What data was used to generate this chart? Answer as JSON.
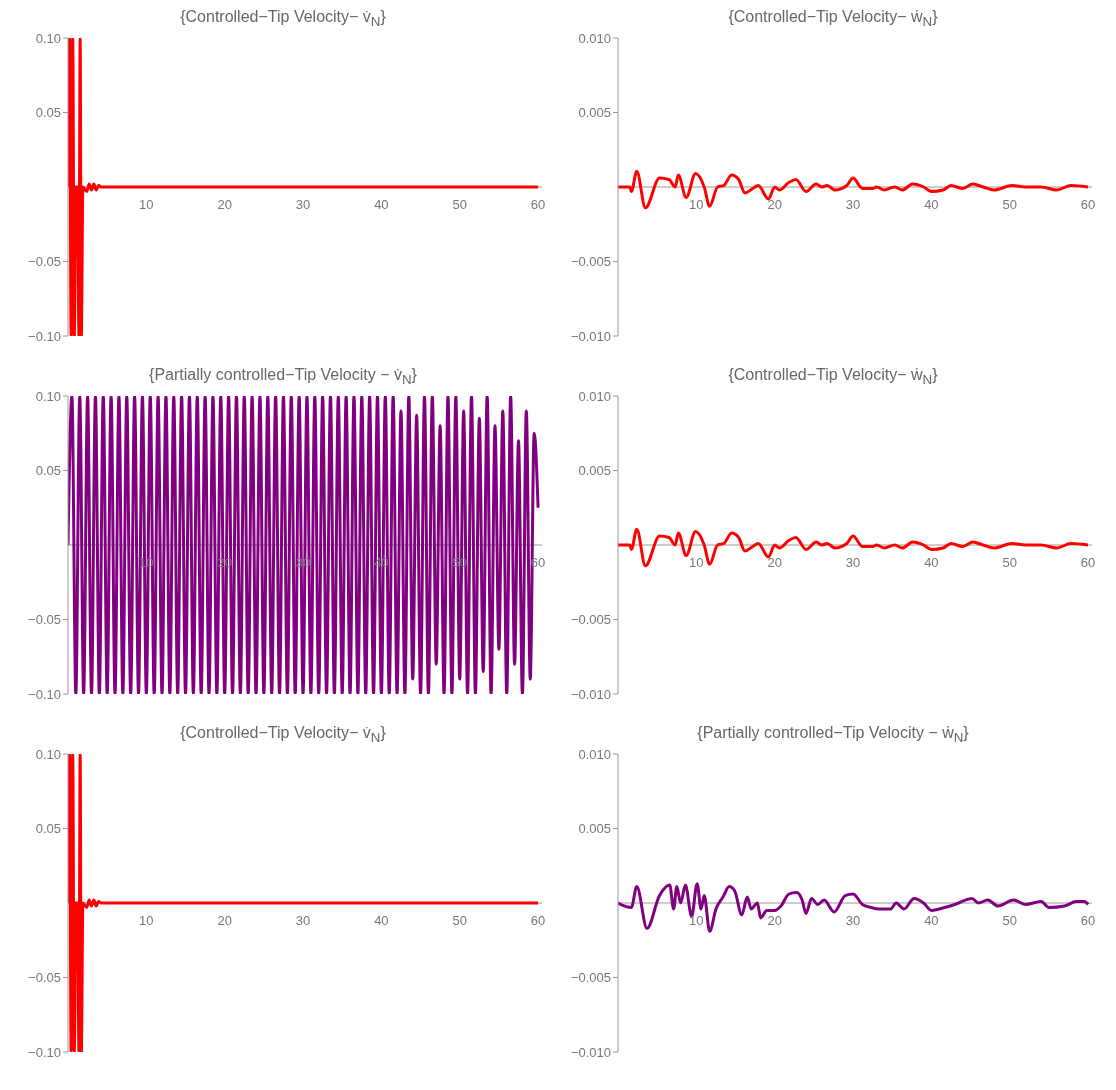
{
  "chart_data": [
    {
      "type": "line",
      "title": "{Controlled−Tip Velocity− v̇$_{N}$}",
      "xlim": [
        0,
        60.5
      ],
      "xticks": [
        10,
        20,
        30,
        40,
        50,
        60
      ],
      "ylim": [
        -0.1,
        0.1
      ],
      "yticks": [
        {
          "value": -0.1,
          "label": "−0.10"
        },
        {
          "value": -0.05,
          "label": "−0.05"
        },
        {
          "value": 0.05,
          "label": "0.05"
        },
        {
          "value": 0.1,
          "label": "0.10"
        }
      ],
      "series": [
        {
          "color": "#ff0000",
          "x": [
            0,
            0.2,
            0.4,
            0.6,
            0.8,
            1,
            1.2,
            1.4,
            1.55,
            1.7,
            1.9,
            2.4,
            2.7,
            3,
            3.3,
            3.6,
            3.9,
            4.2,
            10,
            60
          ],
          "values": [
            0,
            0.1,
            -0.1,
            0.1,
            -0.1,
            0,
            0,
            -0.1,
            0.1,
            -0.1,
            0,
            -0.003,
            0.002,
            -0.002,
            0.002,
            -0.002,
            0.001,
            0,
            0,
            0
          ]
        }
      ]
    },
    {
      "type": "line",
      "title": "{Controlled−Tip Velocity− ẇ$_{N}$}",
      "xlim": [
        0,
        60.5
      ],
      "xticks": [
        10,
        20,
        30,
        40,
        50,
        60
      ],
      "ylim": [
        -0.01,
        0.01
      ],
      "yticks": [
        {
          "value": -0.01,
          "label": "−0.010"
        },
        {
          "value": -0.005,
          "label": "−0.005"
        },
        {
          "value": 0.005,
          "label": "0.005"
        },
        {
          "value": 0.01,
          "label": "0.010"
        }
      ],
      "series": [
        {
          "color": "#ff0000",
          "x": [
            0,
            1.5,
            1.7,
            2.4,
            3.5,
            5.3,
            6.5,
            7.3,
            7.7,
            8.7,
            9.9,
            11,
            11.7,
            12.7,
            13.5,
            14.5,
            15.4,
            16.2,
            17.2,
            17.9,
            19.2,
            20,
            20.6,
            21.8,
            22.7,
            24,
            25.3,
            26,
            26.7,
            27.7,
            29.2,
            30,
            31.2,
            32.5,
            33,
            34,
            35.3,
            36.3,
            37.6,
            39,
            40,
            41.5,
            42.5,
            44,
            45.3,
            46.6,
            48,
            50.3,
            52,
            54,
            56,
            57.8,
            60
          ],
          "values": [
            0,
            0,
            -0.0003,
            0.00105,
            -0.0014,
            0.0006,
            0.0005,
            0,
            0.0008,
            -0.0007,
            0.0009,
            0,
            -0.0013,
            0,
            0.0001,
            0.0008,
            0.0005,
            -0.0004,
            -0.0001,
            0.0001,
            -0.0008,
            0,
            -0.0002,
            0.0003,
            0.0005,
            -0.0003,
            0.0002,
            0,
            0.0001,
            -0.0002,
            0.0001,
            0.0006,
            -0.0001,
            -0.0001,
            0,
            -0.0002,
            0,
            -0.0002,
            0.0002,
            0,
            -0.0003,
            -0.0002,
            0.0001,
            -0.0001,
            0.0002,
            0,
            -0.0002,
            0.0001,
            0,
            0,
            -0.0002,
            0.0001,
            0
          ]
        }
      ]
    },
    {
      "type": "line",
      "title": "{Partially controlled−Tip Velocity − v̇$_{N}$}",
      "xlim": [
        0,
        60.5
      ],
      "xticks": [
        10,
        20,
        30,
        40,
        50,
        60
      ],
      "ylim": [
        -0.1,
        0.1
      ],
      "yticks": [
        {
          "value": -0.1,
          "label": "−0.10"
        },
        {
          "value": -0.05,
          "label": "−0.05"
        },
        {
          "value": 0.05,
          "label": "0.05"
        },
        {
          "value": 0.1,
          "label": "0.10"
        }
      ],
      "series": [
        {
          "color": "#800080",
          "x": [
            0,
            0.5,
            1,
            1.5,
            2,
            2.5,
            3,
            3.5,
            4,
            4.5,
            5,
            5.5,
            6,
            6.5,
            7,
            7.5,
            8,
            8.5,
            9,
            9.5,
            10,
            10.5,
            11,
            11.5,
            12,
            12.5,
            13,
            13.5,
            14,
            14.5,
            15,
            15.5,
            16,
            16.5,
            17,
            17.5,
            18,
            18.5,
            19,
            19.5,
            20,
            20.5,
            21,
            21.5,
            22,
            22.5,
            23,
            23.5,
            24,
            24.5,
            25,
            25.5,
            26,
            26.5,
            27,
            27.5,
            28,
            28.5,
            29,
            29.5,
            30,
            30.5,
            31,
            31.5,
            32,
            32.5,
            33,
            33.5,
            34,
            34.5,
            35,
            35.5,
            36,
            36.5,
            37,
            37.5,
            38,
            38.5,
            39,
            39.5,
            40,
            40.5,
            41,
            41.5,
            42,
            42.5,
            43,
            43.5,
            44,
            44.5,
            45,
            45.5,
            46,
            46.5,
            47,
            47.5,
            48,
            48.5,
            49,
            49.5,
            50,
            50.5,
            51,
            51.5,
            52,
            52.5,
            53,
            53.5,
            54,
            54.5,
            55,
            55.5,
            56,
            56.5,
            57,
            57.5,
            58,
            58.5,
            59,
            59.5,
            60
          ],
          "values": [
            0,
            0.1,
            -0.1,
            0.1,
            -0.1,
            0.1,
            -0.1,
            0.1,
            -0.1,
            0.1,
            -0.1,
            0.1,
            -0.1,
            0.1,
            -0.1,
            0.1,
            -0.1,
            0.1,
            -0.1,
            0.1,
            -0.1,
            0.1,
            -0.1,
            0.1,
            -0.1,
            0.1,
            -0.1,
            0.1,
            -0.1,
            0.1,
            -0.1,
            0.1,
            -0.1,
            0.1,
            -0.1,
            0.1,
            -0.1,
            0.1,
            -0.1,
            0.1,
            -0.1,
            0.1,
            -0.1,
            0.1,
            -0.1,
            0.1,
            -0.1,
            0.1,
            -0.1,
            0.1,
            -0.1,
            0.1,
            -0.1,
            0.1,
            -0.1,
            0.1,
            -0.1,
            0.1,
            -0.1,
            0.1,
            -0.1,
            0.1,
            -0.1,
            0.1,
            -0.1,
            0.1,
            -0.1,
            0.1,
            -0.1,
            0.1,
            -0.1,
            0.1,
            -0.1,
            0.1,
            -0.1,
            0.1,
            -0.1,
            0.1,
            -0.1,
            0.1,
            -0.1,
            0.1,
            -0.1,
            0.1,
            -0.1,
            0.09,
            -0.1,
            0.1,
            -0.09,
            0.087,
            -0.1,
            0.1,
            -0.1,
            0.1,
            -0.08,
            0.08,
            -0.1,
            0.1,
            -0.1,
            0.1,
            -0.09,
            0.09,
            -0.1,
            0.1,
            -0.1,
            0.085,
            -0.085,
            0.1,
            -0.1,
            0.08,
            -0.07,
            0.09,
            -0.1,
            0.1,
            -0.08,
            0.07,
            -0.1,
            0.09,
            -0.09,
            0.075,
            0.025
          ]
        }
      ]
    },
    {
      "type": "line",
      "title": "{Controlled−Tip Velocity− ẇ$_{N}$}",
      "xlim": [
        0,
        60.5
      ],
      "xticks": [
        10,
        20,
        30,
        40,
        50,
        60
      ],
      "ylim": [
        -0.01,
        0.01
      ],
      "yticks": [
        {
          "value": -0.01,
          "label": "−0.010"
        },
        {
          "value": -0.005,
          "label": "−0.005"
        },
        {
          "value": 0.005,
          "label": "0.005"
        },
        {
          "value": 0.01,
          "label": "0.010"
        }
      ],
      "series": [
        {
          "color": "#ff0000",
          "x": [
            0,
            1.5,
            1.7,
            2.4,
            3.5,
            5.3,
            6.5,
            7.3,
            7.7,
            8.7,
            9.9,
            11,
            11.7,
            12.7,
            13.5,
            14.5,
            15.4,
            16.2,
            17.2,
            17.9,
            19.2,
            20,
            20.6,
            21.8,
            22.7,
            24,
            25.3,
            26,
            26.7,
            27.7,
            29.2,
            30,
            31.2,
            32.5,
            33,
            34,
            35.3,
            36.3,
            37.6,
            39,
            40,
            41.5,
            42.5,
            44,
            45.3,
            46.6,
            48,
            50.3,
            52,
            54,
            56,
            57.8,
            60
          ],
          "values": [
            0,
            0,
            -0.0003,
            0.00105,
            -0.0014,
            0.0006,
            0.0005,
            0,
            0.0008,
            -0.0007,
            0.0009,
            0,
            -0.0013,
            0,
            0.0001,
            0.0008,
            0.0005,
            -0.0004,
            -0.0001,
            0.0001,
            -0.0008,
            0,
            -0.0002,
            0.0003,
            0.0005,
            -0.0003,
            0.0002,
            0,
            0.0001,
            -0.0002,
            0.0001,
            0.0006,
            -0.0001,
            -0.0001,
            0,
            -0.0002,
            0,
            -0.0002,
            0.0002,
            0,
            -0.0003,
            -0.0002,
            0.0001,
            -0.0001,
            0.0002,
            0,
            -0.0002,
            0.0001,
            0,
            0,
            -0.0002,
            0.0001,
            0
          ]
        }
      ]
    },
    {
      "type": "line",
      "title": "{Controlled−Tip Velocity− v̇$_{N}$}",
      "xlim": [
        0,
        60.5
      ],
      "xticks": [
        10,
        20,
        30,
        40,
        50,
        60
      ],
      "ylim": [
        -0.1,
        0.1
      ],
      "yticks": [
        {
          "value": -0.1,
          "label": "−0.10"
        },
        {
          "value": -0.05,
          "label": "−0.05"
        },
        {
          "value": 0.05,
          "label": "0.05"
        },
        {
          "value": 0.1,
          "label": "0.10"
        }
      ],
      "series": [
        {
          "color": "#ff0000",
          "x": [
            0,
            0.2,
            0.4,
            0.6,
            0.8,
            1,
            1.2,
            1.4,
            1.55,
            1.7,
            1.9,
            2.4,
            2.7,
            3,
            3.3,
            3.6,
            3.9,
            4.2,
            10,
            60
          ],
          "values": [
            0,
            0.1,
            -0.1,
            0.1,
            -0.1,
            0,
            0,
            -0.1,
            0.1,
            -0.1,
            0,
            -0.003,
            0.002,
            -0.002,
            0.002,
            -0.002,
            0.001,
            0,
            0,
            0
          ]
        }
      ]
    },
    {
      "type": "line",
      "title": "{Partially controlled−Tip Velocity − ẇ$_{N}$}",
      "xlim": [
        0,
        60.5
      ],
      "xticks": [
        10,
        20,
        30,
        40,
        50,
        60
      ],
      "ylim": [
        -0.01,
        0.01
      ],
      "yticks": [
        {
          "value": -0.01,
          "label": "−0.010"
        },
        {
          "value": -0.005,
          "label": "−0.005"
        },
        {
          "value": 0.005,
          "label": "0.005"
        },
        {
          "value": 0.01,
          "label": "0.010"
        }
      ],
      "series": [
        {
          "color": "#800080",
          "x": [
            0,
            1.7,
            2.4,
            3.7,
            5.3,
            6.6,
            7.1,
            7.5,
            8,
            8.6,
            9.4,
            10.1,
            10.6,
            11,
            11.7,
            12.5,
            13.4,
            14.2,
            14.9,
            15.8,
            16.5,
            17,
            17.8,
            18.2,
            19,
            20,
            20.8,
            21.8,
            22.8,
            23.5,
            24,
            24.7,
            25.5,
            26.3,
            27.6,
            29,
            30,
            31.2,
            32.3,
            33.3,
            34.8,
            35.5,
            36.5,
            37.8,
            39,
            40,
            41,
            43,
            45.2,
            46,
            47.2,
            48.5,
            50.5,
            52,
            54,
            55,
            57,
            58.5,
            59.5,
            60
          ],
          "values": [
            0,
            -0.0003,
            0.0011,
            -0.0017,
            0.0005,
            0.0012,
            -0.0004,
            0.0011,
            0,
            0.0012,
            -0.0009,
            0.0013,
            -0.0004,
            0.0005,
            -0.0019,
            -0.0004,
            0.0004,
            0.0011,
            0.0008,
            -0.0008,
            0.0004,
            -0.0004,
            0,
            -0.001,
            -0.0005,
            -0.0005,
            -0.0002,
            0.0006,
            0.0007,
            0.0002,
            -0.0007,
            0.0003,
            -0.0001,
            0.0002,
            -0.0006,
            0.0005,
            0.0006,
            -0.0001,
            -0.0003,
            -0.0004,
            -0.0004,
            0,
            -0.0004,
            0.0003,
            0,
            -0.0005,
            -0.0004,
            -0.0001,
            0.0003,
            0,
            0.0002,
            -0.0002,
            0.0002,
            -0.0001,
            0.0001,
            -0.0003,
            -0.0002,
            0.0001,
            0.0001,
            -0.0001
          ]
        }
      ]
    }
  ]
}
